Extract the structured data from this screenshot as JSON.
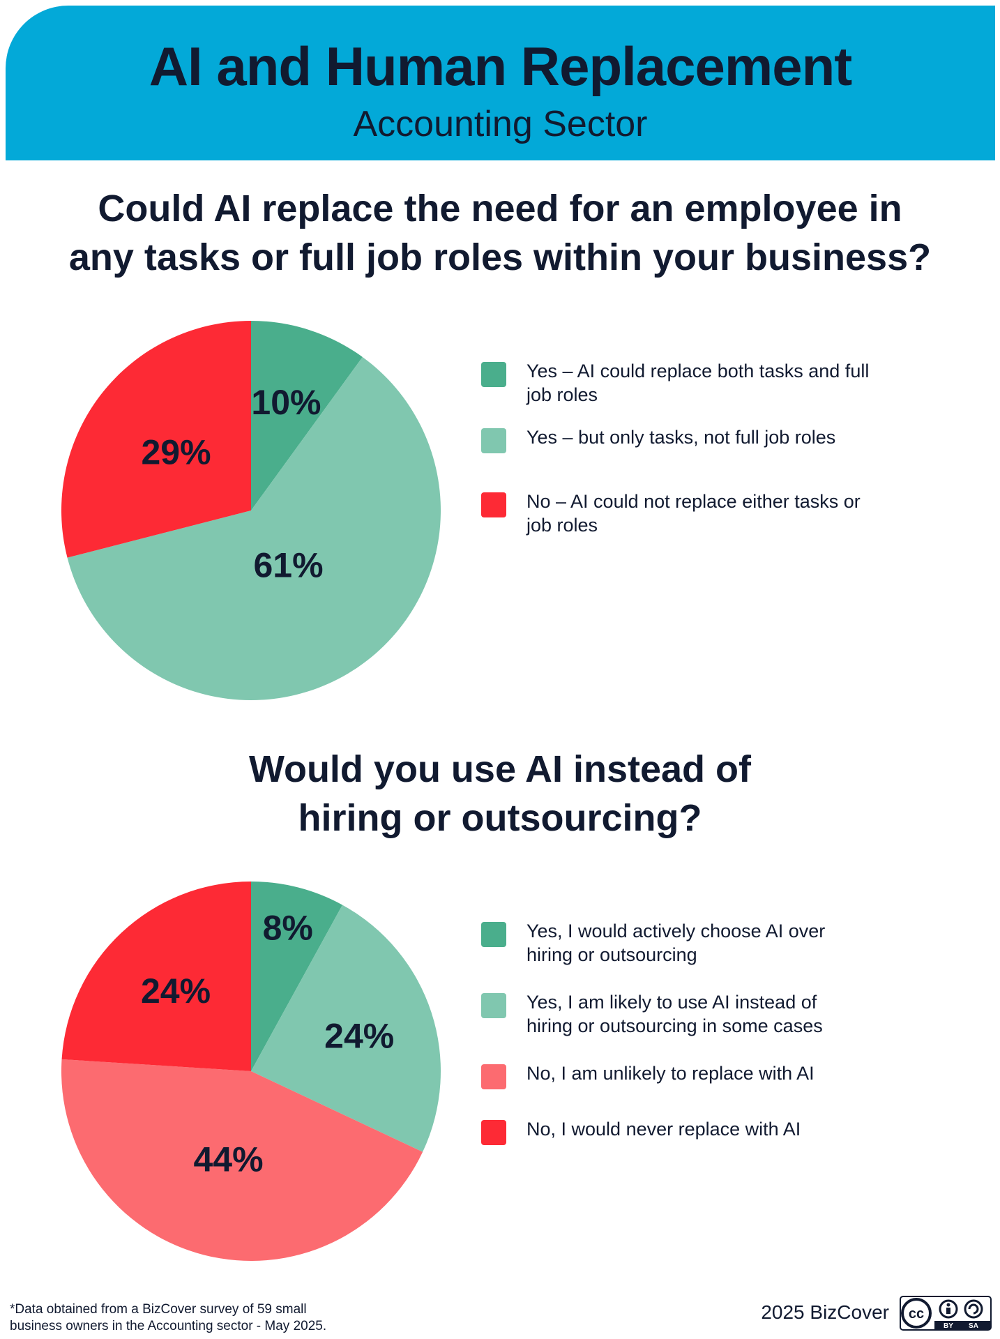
{
  "header": {
    "title": "AI and Human Replacement",
    "subtitle": "Accounting Sector",
    "color": "#03a9d8"
  },
  "chart_data": [
    {
      "type": "pie",
      "title": "Could AI replace the need for an employee in any tasks or full job roles within your business?",
      "title_lines": [
        "Could AI replace the need for an employee in",
        "any tasks or full job roles within your business?"
      ],
      "slices": [
        {
          "label_lines": [
            "Yes – AI could replace both tasks and full",
            "job roles"
          ],
          "value": 10,
          "display": "10%",
          "color": "#4aae8c"
        },
        {
          "label_lines": [
            "Yes – but only tasks, not full job roles"
          ],
          "value": 61,
          "display": "61%",
          "color": "#80c7af"
        },
        {
          "label_lines": [
            "No – AI could not replace either tasks or",
            "job roles"
          ],
          "value": 29,
          "display": "29%",
          "color": "#fd2a35"
        }
      ],
      "legend": "right"
    },
    {
      "type": "pie",
      "title": "Would you use AI instead of hiring or outsourcing?",
      "title_lines": [
        "Would you use AI instead of",
        "hiring or outsourcing?"
      ],
      "slices": [
        {
          "label_lines": [
            "Yes, I would actively choose AI over",
            "hiring or outsourcing"
          ],
          "value": 8,
          "display": "8%",
          "color": "#4aae8c"
        },
        {
          "label_lines": [
            "Yes, I am likely to use AI instead of",
            "hiring or outsourcing in some cases"
          ],
          "value": 24,
          "display": "24%",
          "color": "#80c7af"
        },
        {
          "label_lines": [
            "No, I am unlikely to replace with AI"
          ],
          "value": 44,
          "display": "44%",
          "color": "#fc6b70"
        },
        {
          "label_lines": [
            "No, I would never replace with AI"
          ],
          "value": 24,
          "display": "24%",
          "color": "#fd2a35"
        }
      ],
      "legend": "right"
    }
  ],
  "footer": {
    "footnote_lines": [
      "*Data obtained from a BizCover survey of 59 small",
      "business owners in the Accounting sector - May 2025."
    ],
    "copyright": "2025 BizCover",
    "license_icon": "cc-by-sa-icon",
    "license_labels": {
      "cc": "cc",
      "by": "BY",
      "sa": "SA"
    }
  }
}
